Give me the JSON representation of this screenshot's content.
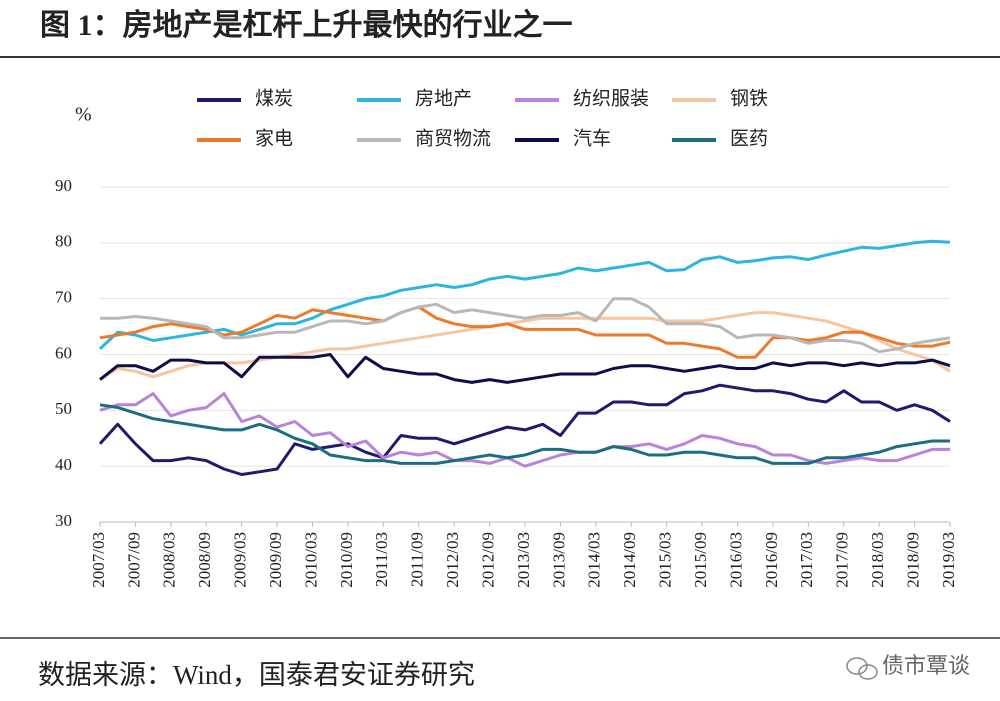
{
  "title": "图 1：房地产是杠杆上升最快的行业之一",
  "source": "数据来源：Wind，国泰君安证券研究",
  "watermark": "债市覃谈",
  "chart_data": {
    "type": "line",
    "y_label": "%",
    "legend": "top",
    "categories": [
      "2007/03",
      null,
      "2007/09",
      null,
      "2008/03",
      null,
      "2008/09",
      null,
      "2009/03",
      null,
      "2009/09",
      null,
      "2010/03",
      null,
      "2010/09",
      null,
      "2011/03",
      null,
      "2011/09",
      null,
      "2012/03",
      null,
      "2012/09",
      null,
      "2013/03",
      null,
      "2013/09",
      null,
      "2014/03",
      null,
      "2014/09",
      null,
      "2015/03",
      null,
      "2015/09",
      null,
      "2016/03",
      null,
      "2016/09",
      null,
      "2017/03",
      null,
      "2017/09",
      null,
      "2018/03",
      null,
      "2018/09",
      null,
      "2019/03"
    ],
    "ylim": [
      30,
      90
    ],
    "yticks": [
      30,
      40,
      50,
      60,
      70,
      80,
      90
    ],
    "series": [
      {
        "name": "煤炭",
        "color": "#1f1a6e",
        "values": [
          44,
          47.5,
          44,
          41,
          41,
          41.5,
          41,
          39.5,
          38.5,
          39,
          39.5,
          44,
          43,
          43.5,
          44,
          42.5,
          41.5,
          45.5,
          45,
          45,
          44,
          45,
          46,
          47,
          46.5,
          47.5,
          45.5,
          49.5,
          49.5,
          51.5,
          51.5,
          51,
          51,
          53,
          53.5,
          54.5,
          54,
          53.5,
          53.5,
          53,
          52,
          51.5,
          53.5,
          51.5,
          51.5,
          50,
          51,
          50,
          48
        ]
      },
      {
        "name": "房地产",
        "color": "#2bb5e0",
        "values": [
          61,
          64,
          63.5,
          62.5,
          63,
          63.5,
          64,
          64.5,
          63.5,
          64.5,
          65.5,
          65.5,
          66.5,
          68,
          69,
          70,
          70.5,
          71.5,
          72,
          72.5,
          72,
          72.5,
          73.5,
          74,
          73.5,
          74,
          74.5,
          75.5,
          75,
          75.5,
          76,
          76.5,
          75,
          75.2,
          77,
          77.5,
          76.5,
          76.8,
          77.3,
          77.5,
          77,
          77.8,
          78.5,
          79.2,
          79,
          79.5,
          80,
          80.3,
          80.1
        ]
      },
      {
        "name": "纺织服装",
        "color": "#b784d9",
        "values": [
          50,
          51,
          51,
          53,
          49,
          50,
          50.5,
          53,
          48,
          49,
          47,
          48,
          45.5,
          46,
          43.5,
          44.5,
          41.5,
          42.5,
          42,
          42.5,
          41,
          41,
          40.5,
          41.5,
          40,
          41,
          42,
          42.5,
          42.5,
          43.5,
          43.5,
          44,
          43,
          44,
          45.5,
          45,
          44,
          43.5,
          42,
          42,
          41,
          40.5,
          41,
          41.5,
          41,
          41,
          42,
          43,
          43
        ]
      },
      {
        "name": "钢铁",
        "color": "#f5c6a0",
        "values": [
          55.5,
          57.5,
          57,
          56,
          57,
          58,
          58.5,
          58.5,
          58.5,
          59,
          59.5,
          60,
          60.5,
          61,
          61,
          61.5,
          62,
          62.5,
          63,
          63.5,
          64,
          64.5,
          65,
          65.5,
          66,
          66.5,
          66.5,
          66.5,
          66.5,
          66.5,
          66.5,
          66.5,
          66,
          66,
          66,
          66.5,
          67,
          67.5,
          67.5,
          67,
          66.5,
          66,
          65,
          64,
          62.5,
          61,
          60,
          59,
          57
        ]
      },
      {
        "name": "家电",
        "color": "#ec7a2a",
        "values": [
          63,
          63.5,
          64,
          65,
          65.5,
          65,
          64.5,
          63.5,
          64,
          65.5,
          67,
          66.5,
          68,
          67.5,
          67,
          66.5,
          66,
          67.5,
          68.5,
          66.5,
          65.5,
          65,
          65,
          65.5,
          64.5,
          64.5,
          64.5,
          64.5,
          63.5,
          63.5,
          63.5,
          63.5,
          62,
          62,
          61.5,
          61,
          59.5,
          59.5,
          63,
          63,
          62.5,
          63,
          64,
          64,
          63,
          62,
          61.5,
          61.5,
          62.2
        ]
      },
      {
        "name": "商贸物流",
        "color": "#b8b8b8",
        "values": [
          66.5,
          66.5,
          66.8,
          66.5,
          66,
          65.5,
          65,
          63,
          63,
          63.5,
          64,
          64,
          65,
          66,
          66,
          65.5,
          66,
          67.5,
          68.5,
          69,
          67.5,
          68,
          67.5,
          67,
          66.5,
          67,
          67,
          67.5,
          66,
          70,
          70,
          68.5,
          65.5,
          65.5,
          65.5,
          65,
          63,
          63.5,
          63.5,
          63,
          62,
          62.5,
          62.5,
          62,
          60.5,
          61,
          62,
          62.5,
          63
        ]
      },
      {
        "name": "汽车",
        "color": "#0d0d4a",
        "values": [
          55.5,
          58,
          58,
          57,
          59,
          59,
          58.5,
          58.5,
          56,
          59.5,
          59.5,
          59.5,
          59.5,
          60,
          56,
          59.5,
          57.5,
          57,
          56.5,
          56.5,
          55.5,
          55,
          55.5,
          55,
          55.5,
          56,
          56.5,
          56.5,
          56.5,
          57.5,
          58,
          58,
          57.5,
          57,
          57.5,
          58,
          57.5,
          57.5,
          58.5,
          58,
          58.5,
          58.5,
          58,
          58.5,
          58,
          58.5,
          58.5,
          59,
          58
        ]
      },
      {
        "name": "医药",
        "color": "#1a6e80",
        "values": [
          51,
          50.5,
          49.5,
          48.5,
          48,
          47.5,
          47,
          46.5,
          46.5,
          47.5,
          46.5,
          45,
          44,
          42,
          41.5,
          41,
          41,
          40.5,
          40.5,
          40.5,
          41,
          41.5,
          42,
          41.5,
          42,
          43,
          43,
          42.5,
          42.5,
          43.5,
          43,
          42,
          42,
          42.5,
          42.5,
          42,
          41.5,
          41.5,
          40.5,
          40.5,
          40.5,
          41.5,
          41.5,
          42,
          42.5,
          43.5,
          44,
          44.5,
          44.5
        ]
      }
    ]
  }
}
